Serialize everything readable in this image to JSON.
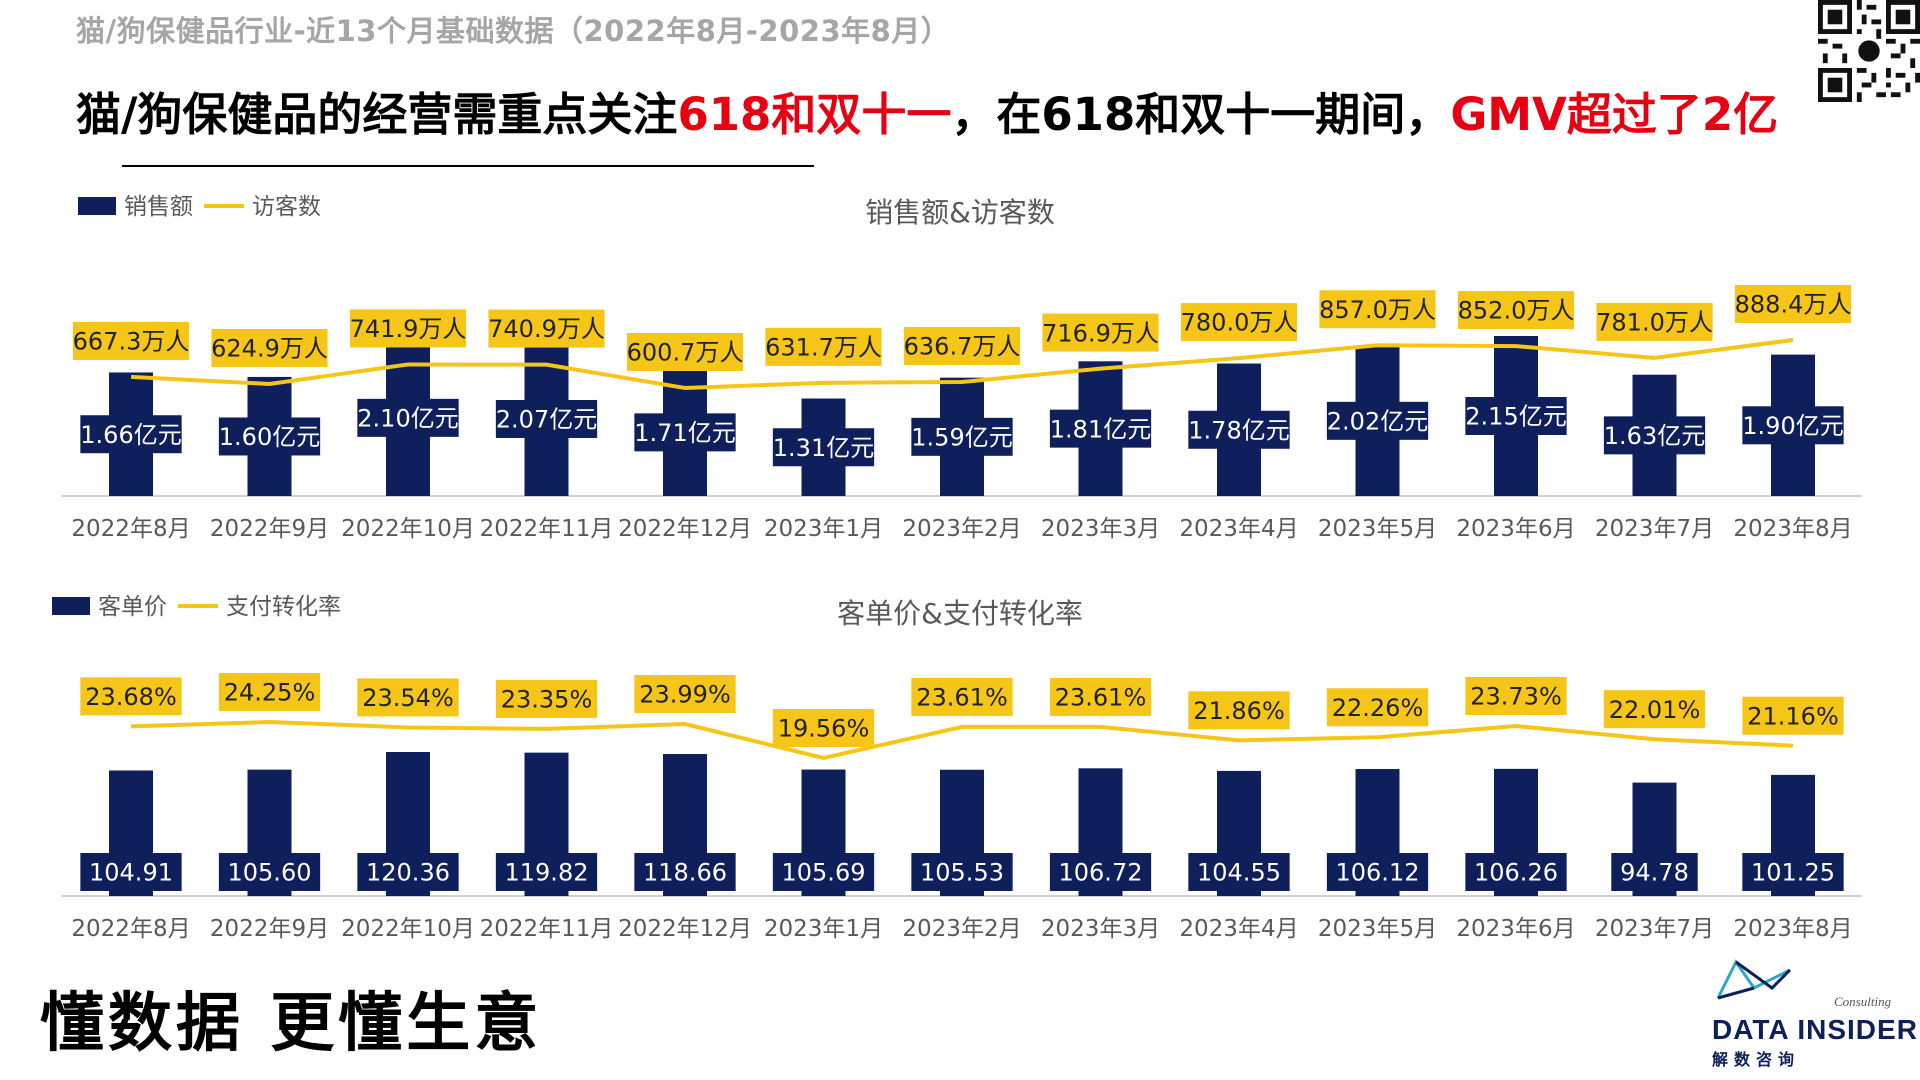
{
  "header": {
    "subtitle": "猫/狗保健品行业-近13个月基础数据（2022年8月-2023年8月）",
    "headline_part1": "猫/狗保健品的经营需重点关注",
    "headline_hl1": "618和双十一",
    "headline_part2": "，在618和双十一期间，",
    "headline_hl2": "GMV超过了2亿"
  },
  "footer": {
    "slogan": "懂数据 更懂生意",
    "logo_main": "DATA INSIDER",
    "logo_consulting": "Consulting",
    "logo_cn": "解数咨询"
  },
  "colors": {
    "bar": "#0e1f5b",
    "line": "#f5c518",
    "highlight": "#e60012"
  },
  "chart_data": [
    {
      "type": "bar+line",
      "title": "销售额&访客数",
      "categories": [
        "2022年8月",
        "2022年9月",
        "2022年10月",
        "2022年11月",
        "2022年12月",
        "2023年1月",
        "2023年2月",
        "2023年3月",
        "2023年4月",
        "2023年5月",
        "2023年6月",
        "2023年7月",
        "2023年8月"
      ],
      "series": [
        {
          "name": "销售额",
          "kind": "bar",
          "values": [
            1.66,
            1.6,
            2.1,
            2.07,
            1.71,
            1.31,
            1.59,
            1.81,
            1.78,
            2.02,
            2.15,
            1.63,
            1.9
          ],
          "labels": [
            "1.66亿元",
            "1.60亿元",
            "2.10亿元",
            "2.07亿元",
            "1.71亿元",
            "1.31亿元",
            "1.59亿元",
            "1.81亿元",
            "1.78亿元",
            "2.02亿元",
            "2.15亿元",
            "1.63亿元",
            "1.90亿元"
          ]
        },
        {
          "name": "访客数",
          "kind": "line",
          "values": [
            667.3,
            624.9,
            741.9,
            740.9,
            600.7,
            631.7,
            636.7,
            716.9,
            780.0,
            857.0,
            852.0,
            781.0,
            888.4
          ],
          "labels": [
            "667.3万人",
            "624.9万人",
            "741.9万人",
            "740.9万人",
            "600.7万人",
            "631.7万人",
            "636.7万人",
            "716.9万人",
            "780.0万人",
            "857.0万人",
            "852.0万人",
            "781.0万人",
            "888.4万人"
          ]
        }
      ],
      "legend": "top-left"
    },
    {
      "type": "bar+line",
      "title": "客单价&支付转化率",
      "categories": [
        "2022年8月",
        "2022年9月",
        "2022年10月",
        "2022年11月",
        "2022年12月",
        "2023年1月",
        "2023年2月",
        "2023年3月",
        "2023年4月",
        "2023年5月",
        "2023年6月",
        "2023年7月",
        "2023年8月"
      ],
      "series": [
        {
          "name": "客单价",
          "kind": "bar",
          "values": [
            104.91,
            105.6,
            120.36,
            119.82,
            118.66,
            105.69,
            105.53,
            106.72,
            104.55,
            106.12,
            106.26,
            94.78,
            101.25
          ],
          "labels": [
            "104.91",
            "105.60",
            "120.36",
            "119.82",
            "118.66",
            "105.69",
            "105.53",
            "106.72",
            "104.55",
            "106.12",
            "106.26",
            "94.78",
            "101.25"
          ]
        },
        {
          "name": "支付转化率",
          "kind": "line",
          "values": [
            23.68,
            24.25,
            23.54,
            23.35,
            23.99,
            19.56,
            23.61,
            23.61,
            21.86,
            22.26,
            23.73,
            22.01,
            21.16
          ],
          "labels": [
            "23.68%",
            "24.25%",
            "23.54%",
            "23.35%",
            "23.99%",
            "19.56%",
            "23.61%",
            "23.61%",
            "21.86%",
            "22.26%",
            "23.73%",
            "22.01%",
            "21.16%"
          ]
        }
      ],
      "legend": "top-left"
    }
  ]
}
